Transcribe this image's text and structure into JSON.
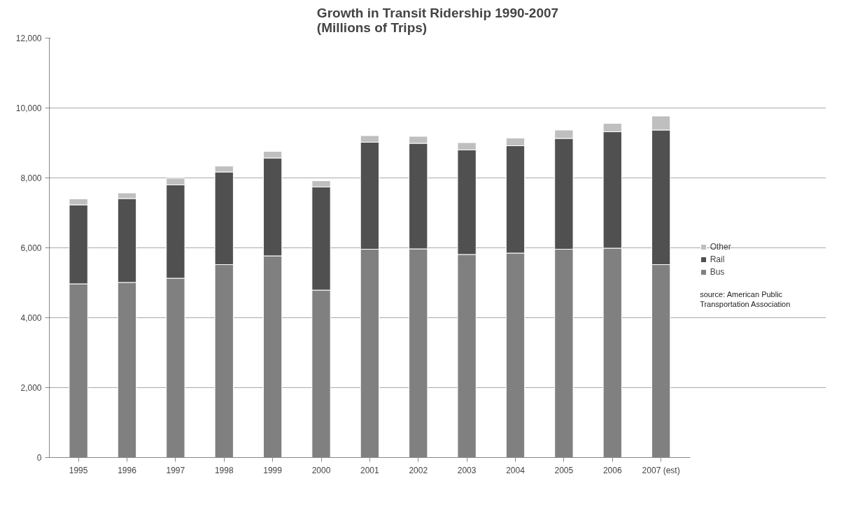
{
  "chart_data": {
    "type": "bar",
    "title": "Growth in Transit Ridership 1990-2007\n(Millions of Trips)",
    "categories": [
      "1995",
      "1996",
      "1997",
      "1998",
      "1999",
      "2000",
      "2001",
      "2002",
      "2003",
      "2004",
      "2005",
      "2006",
      "2007 (est)"
    ],
    "stacked": true,
    "series": [
      {
        "name": "Bus",
        "color": "#808080",
        "values": [
          4970,
          5010,
          5130,
          5520,
          5770,
          4790,
          5960,
          5970,
          5810,
          5850,
          5960,
          5990,
          5520
        ]
      },
      {
        "name": "Rail",
        "color": "#505050",
        "values": [
          2260,
          2400,
          2670,
          2650,
          2800,
          2950,
          3060,
          3020,
          2990,
          3070,
          3170,
          3330,
          3850
        ]
      },
      {
        "name": "Other",
        "color": "#bfbfbf",
        "values": [
          170,
          160,
          190,
          170,
          190,
          180,
          190,
          200,
          210,
          220,
          240,
          240,
          400
        ]
      }
    ],
    "ylim": [
      0,
      12000
    ],
    "yticks": [
      {
        "value": 0,
        "label": "0"
      },
      {
        "value": 2000,
        "label": "2,000"
      },
      {
        "value": 4000,
        "label": "4,000"
      },
      {
        "value": 6000,
        "label": "6,000"
      },
      {
        "value": 8000,
        "label": "8,000"
      },
      {
        "value": 10000,
        "label": "10,000"
      },
      {
        "value": 12000,
        "label": "12,000"
      }
    ],
    "grid": "y",
    "legend": "right",
    "annotations": [
      "source: American Public Transportation Association"
    ]
  }
}
